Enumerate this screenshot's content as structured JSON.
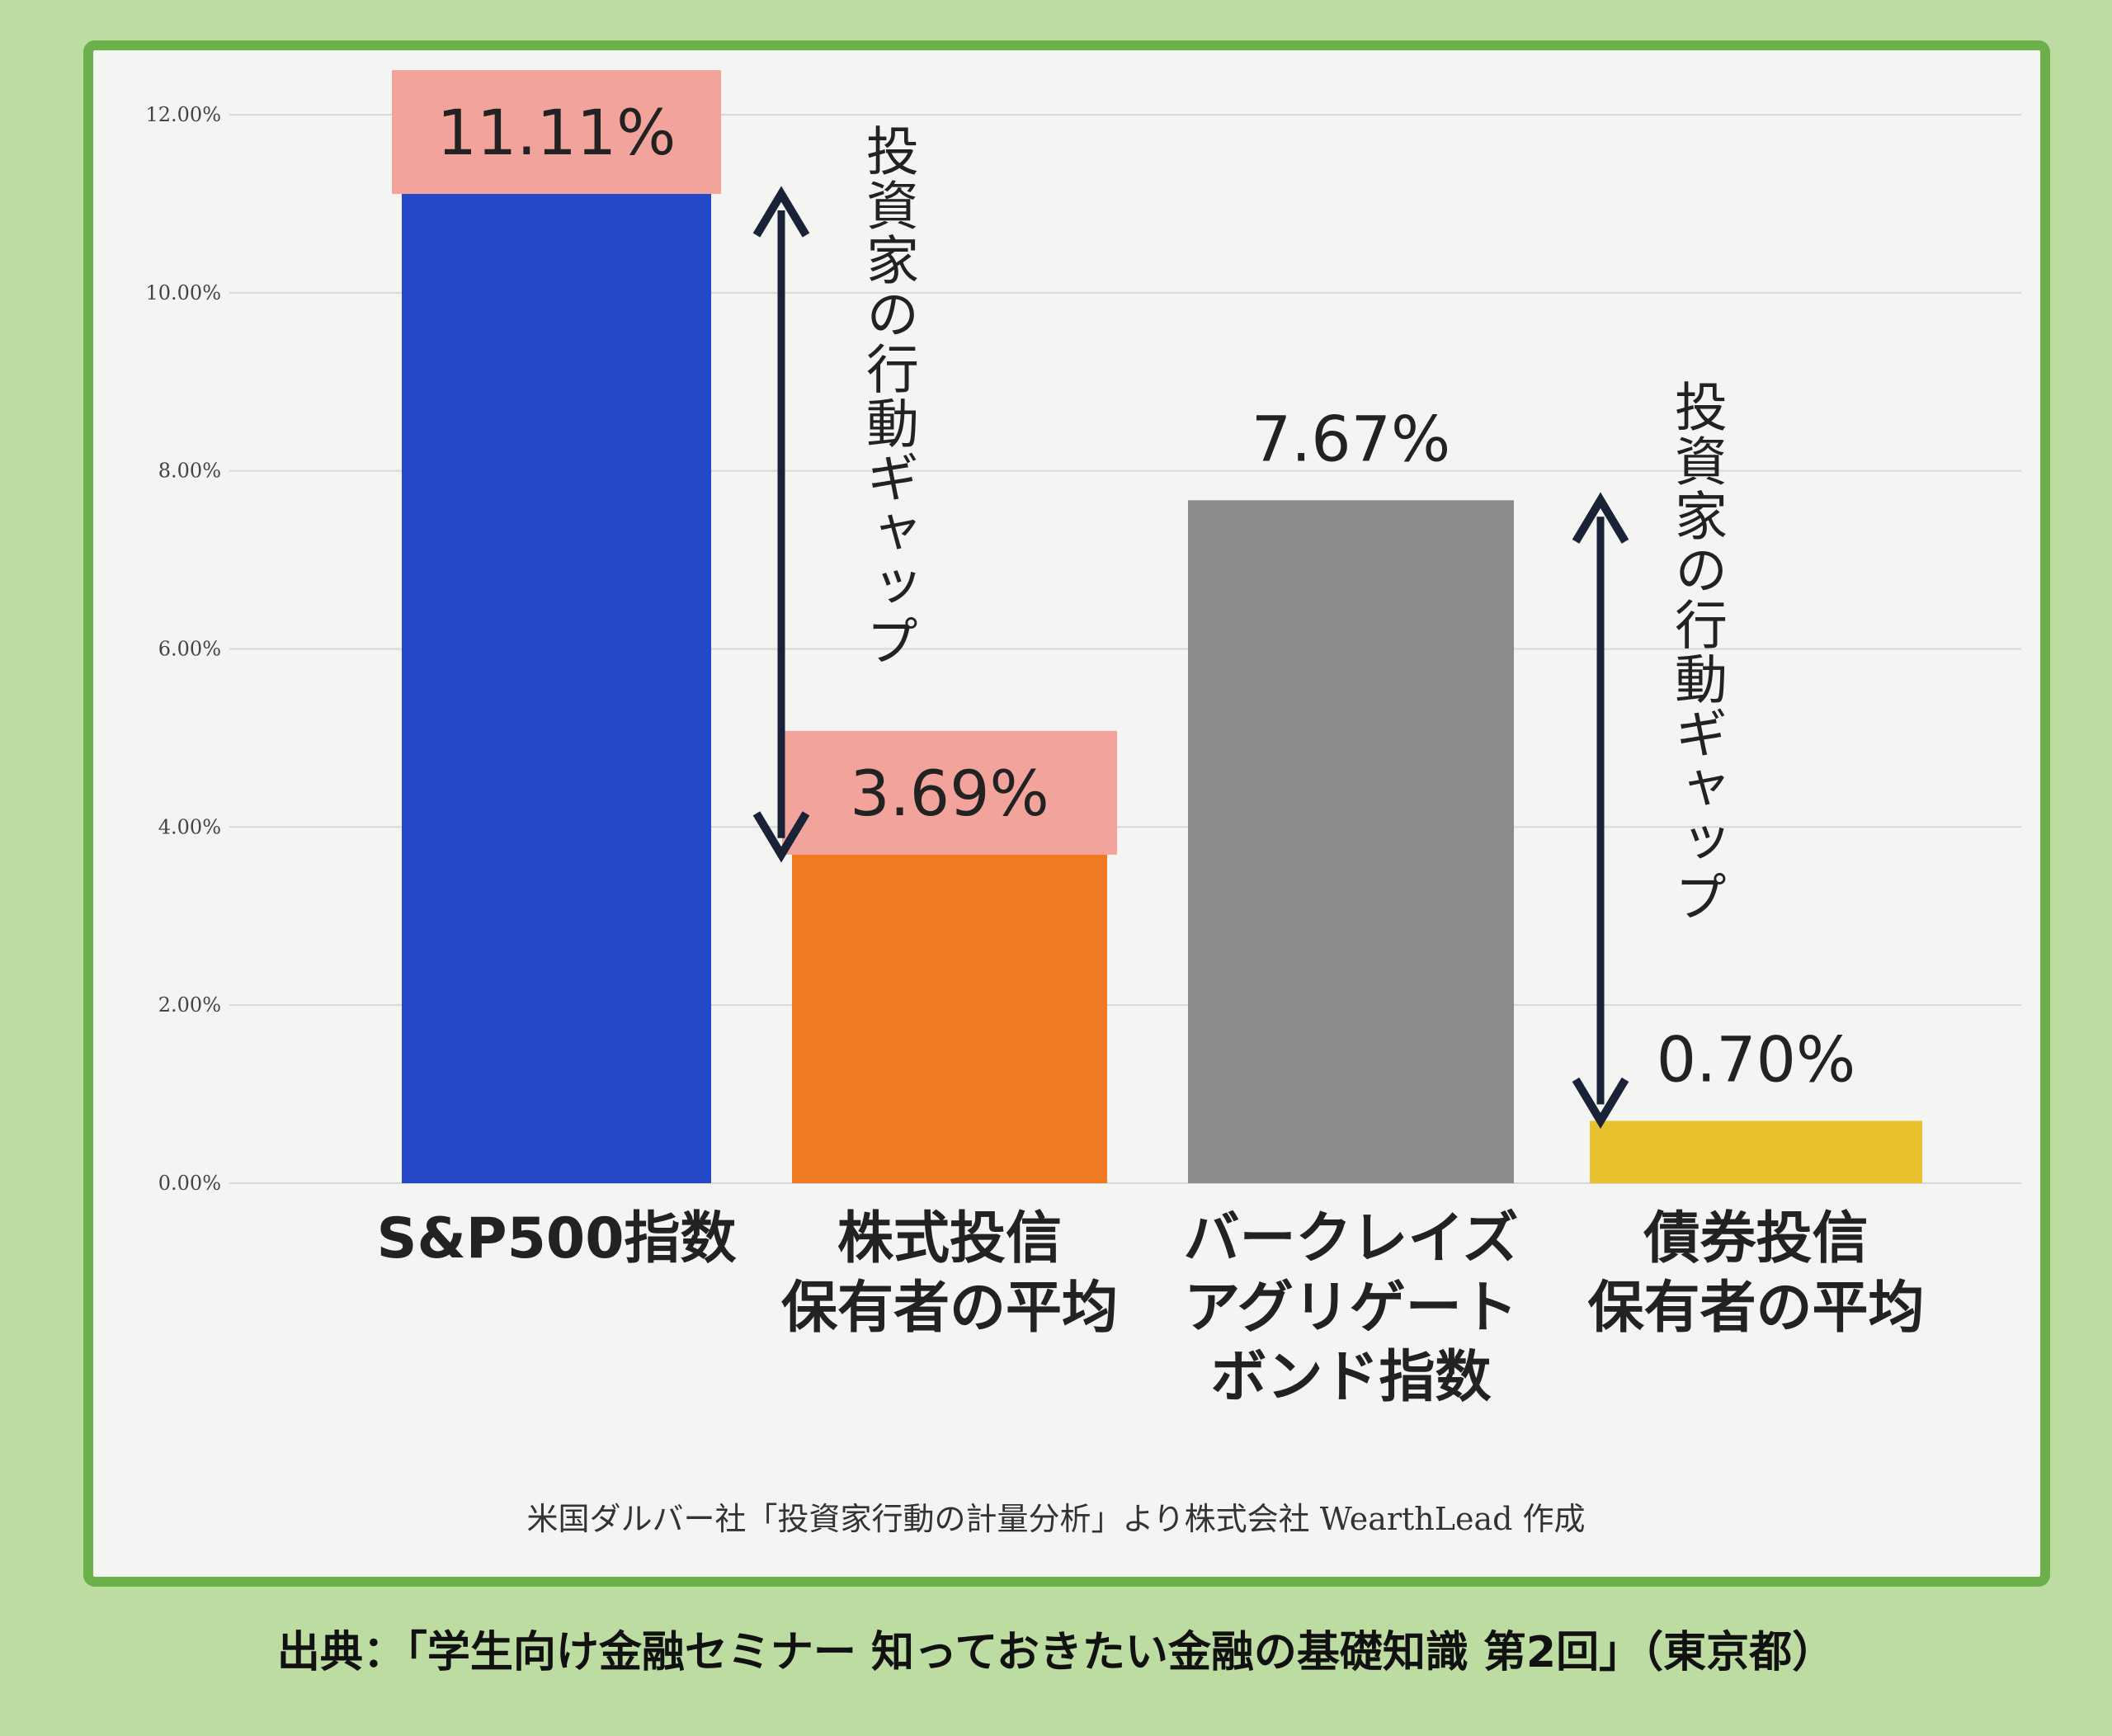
{
  "chart_data": {
    "type": "bar",
    "categories": [
      "S&P500指数",
      "株式投信\n保有者の平均",
      "バークレイズ\nアグリゲート\nボンド指数",
      "債券投信\n保有者の平均"
    ],
    "values": [
      11.11,
      3.69,
      7.67,
      0.7
    ],
    "value_labels": [
      "11.11%",
      "3.69%",
      "7.67%",
      "0.70%"
    ],
    "colors": [
      "#2448c8",
      "#f07a22",
      "#8c8c8c",
      "#e8c22e"
    ],
    "label_backgrounds": [
      "#f2a49c",
      "#f2a49c",
      null,
      null
    ],
    "ylim": [
      0,
      12
    ],
    "yticks": [
      {
        "value": 0,
        "label": "0.00%"
      },
      {
        "value": 2,
        "label": "2.00%"
      },
      {
        "value": 4,
        "label": "4.00%"
      },
      {
        "value": 6,
        "label": "6.00%"
      },
      {
        "value": 8,
        "label": "8.00%"
      },
      {
        "value": 10,
        "label": "10.00%"
      },
      {
        "value": 12,
        "label": "12.00%"
      }
    ],
    "grid": true,
    "annotations": [
      "投資家の行動ギャップ",
      "投資家の行動ギャップ"
    ],
    "note": "米国ダルバー社「投資家行動の計量分析」より株式会社 WearthLead 作成",
    "caption": "出典：「学生向け金融セミナー 知っておきたい金融の基礎知識 第2回」（東京都）"
  }
}
